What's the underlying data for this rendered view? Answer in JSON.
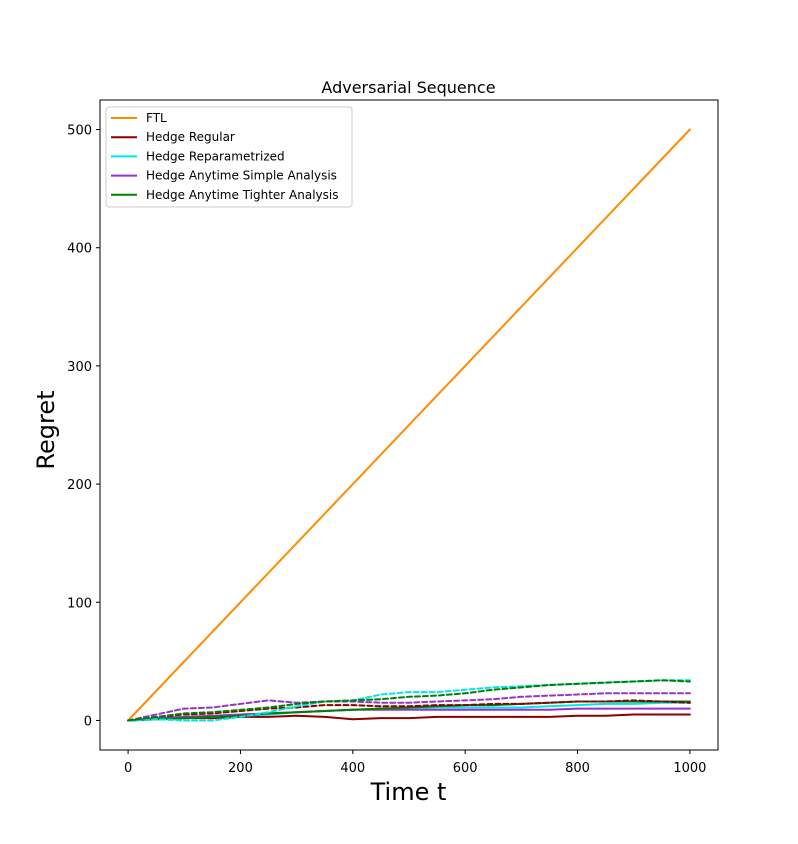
{
  "chart_data": {
    "type": "line",
    "title": "Adversarial Sequence",
    "xlabel": "Time t",
    "ylabel": "Regret",
    "xlim": [
      -50,
      1050
    ],
    "ylim": [
      -25,
      525
    ],
    "xticks": [
      0,
      200,
      400,
      600,
      800,
      1000
    ],
    "yticks": [
      0,
      100,
      200,
      300,
      400,
      500
    ],
    "legend_position": "top-left",
    "grid": false,
    "series": [
      {
        "name": "FTL",
        "color": "#ff8c00",
        "style": "solid",
        "x": [
          0,
          1000
        ],
        "y": [
          0,
          500
        ]
      },
      {
        "name": "Hedge Regular",
        "color": "#8b0000",
        "style": "solid",
        "x": [
          0,
          50,
          100,
          150,
          200,
          250,
          300,
          350,
          400,
          450,
          500,
          550,
          600,
          650,
          700,
          750,
          800,
          850,
          900,
          950,
          1000
        ],
        "y": [
          0,
          1,
          2,
          2,
          3,
          3,
          4,
          3,
          1,
          2,
          2,
          3,
          3,
          3,
          3,
          3,
          4,
          4,
          5,
          5,
          5
        ]
      },
      {
        "name": "Hedge Reparametrized",
        "color": "#00e5ee",
        "style": "solid",
        "x": [
          0,
          50,
          100,
          150,
          200,
          250,
          300,
          350,
          400,
          450,
          500,
          550,
          600,
          650,
          700,
          750,
          800,
          850,
          900,
          950,
          1000
        ],
        "y": [
          0,
          1,
          2,
          3,
          4,
          5,
          7,
          8,
          9,
          10,
          10,
          11,
          11,
          11,
          11,
          12,
          13,
          14,
          14,
          15,
          15
        ]
      },
      {
        "name": "Hedge Anytime Simple Analysis",
        "color": "#9932cc",
        "style": "solid",
        "x": [
          0,
          50,
          100,
          150,
          200,
          250,
          300,
          350,
          400,
          450,
          500,
          550,
          600,
          650,
          700,
          750,
          800,
          850,
          900,
          950,
          1000
        ],
        "y": [
          0,
          2,
          3,
          4,
          5,
          6,
          7,
          8,
          9,
          9,
          9,
          9,
          9,
          9,
          9,
          9,
          10,
          10,
          10,
          10,
          10
        ]
      },
      {
        "name": "Hedge Anytime Tighter Analysis",
        "color": "#008000",
        "style": "solid",
        "x": [
          0,
          50,
          100,
          150,
          200,
          250,
          300,
          350,
          400,
          450,
          500,
          550,
          600,
          650,
          700,
          750,
          800,
          850,
          900,
          950,
          1000
        ],
        "y": [
          0,
          1,
          2,
          3,
          4,
          6,
          7,
          8,
          9,
          10,
          11,
          12,
          13,
          13,
          14,
          15,
          16,
          16,
          16,
          16,
          16
        ]
      },
      {
        "color": "#8b0000",
        "style": "dashed",
        "x": [
          0,
          50,
          100,
          150,
          200,
          250,
          300,
          350,
          400,
          450,
          500,
          550,
          600,
          650,
          700,
          750,
          800,
          850,
          900,
          950,
          1000
        ],
        "y": [
          0,
          3,
          5,
          6,
          8,
          10,
          11,
          13,
          13,
          12,
          12,
          13,
          13,
          14,
          14,
          15,
          16,
          16,
          17,
          16,
          15
        ]
      },
      {
        "color": "#00e5ee",
        "style": "dashed",
        "x": [
          0,
          50,
          100,
          150,
          200,
          250,
          300,
          350,
          400,
          450,
          500,
          550,
          600,
          650,
          700,
          750,
          800,
          850,
          900,
          950,
          1000
        ],
        "y": [
          0,
          1,
          0,
          0,
          3,
          7,
          12,
          16,
          17,
          22,
          24,
          24,
          26,
          28,
          29,
          30,
          31,
          32,
          33,
          34,
          34
        ]
      },
      {
        "color": "#9932cc",
        "style": "dashed",
        "x": [
          0,
          50,
          100,
          150,
          200,
          250,
          300,
          350,
          400,
          450,
          500,
          550,
          600,
          650,
          700,
          750,
          800,
          850,
          900,
          950,
          1000
        ],
        "y": [
          0,
          5,
          10,
          11,
          14,
          17,
          15,
          16,
          16,
          15,
          15,
          16,
          17,
          18,
          20,
          21,
          22,
          23,
          23,
          23,
          23
        ]
      },
      {
        "color": "#008000",
        "style": "dashed",
        "x": [
          0,
          50,
          100,
          150,
          200,
          250,
          300,
          350,
          400,
          450,
          500,
          550,
          600,
          650,
          700,
          750,
          800,
          850,
          900,
          950,
          1000
        ],
        "y": [
          0,
          3,
          6,
          7,
          9,
          11,
          14,
          16,
          17,
          18,
          20,
          21,
          23,
          26,
          28,
          30,
          31,
          32,
          33,
          34,
          33
        ]
      }
    ]
  }
}
